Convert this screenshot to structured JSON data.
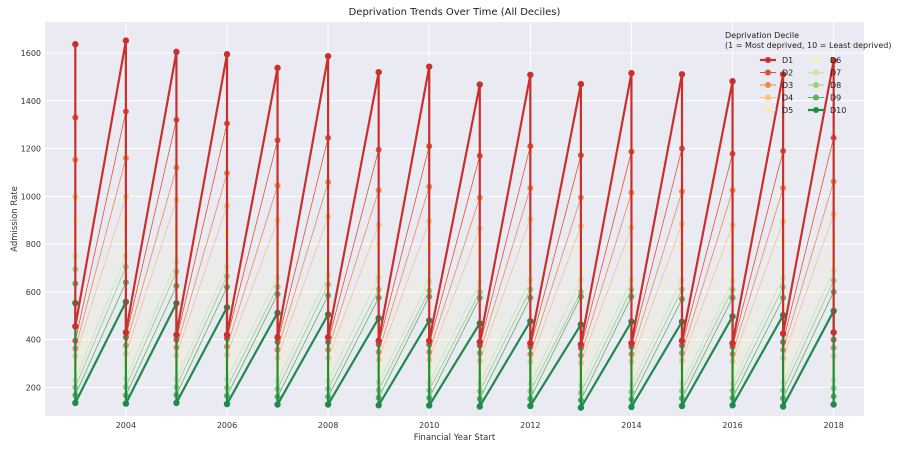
{
  "chart_data": {
    "type": "line",
    "title": "Deprivation Trends Over Time (All Deciles)",
    "xlabel": "Financial Year Start",
    "ylabel": "Admission Rate",
    "xlim": [
      2002.4,
      2018.6
    ],
    "ylim": [
      80,
      1730
    ],
    "xticks": [
      2004,
      2006,
      2008,
      2010,
      2012,
      2014,
      2016,
      2018
    ],
    "yticks": [
      200,
      400,
      600,
      800,
      1000,
      1200,
      1400,
      1600
    ],
    "grid": true,
    "legend": {
      "title_line1": "Deprivation Decile",
      "title_line2": "(1 = Most deprived, 10 = Least deprived)",
      "placement": "top-right"
    },
    "x": [
      2003,
      2004,
      2005,
      2006,
      2007,
      2008,
      2009,
      2010,
      2011,
      2012,
      2013,
      2014,
      2015,
      2016,
      2017,
      2018
    ],
    "series": [
      {
        "name": "D1",
        "color": "#c9302c",
        "bold": true,
        "peak": [
          1637,
          1652,
          1605,
          1595,
          1538,
          1587,
          1520,
          1543,
          1468,
          1509,
          1470,
          1516,
          1511,
          1482,
          1511,
          1568
        ],
        "low": [
          455,
          430,
          420,
          420,
          410,
          410,
          395,
          395,
          390,
          385,
          380,
          385,
          395,
          385,
          425,
          430
        ]
      },
      {
        "name": "D2",
        "color": "#dd5138",
        "bold": false,
        "peak": [
          1330,
          1355,
          1320,
          1305,
          1235,
          1245,
          1195,
          1210,
          1170,
          1210,
          1172,
          1187,
          1200,
          1178,
          1190,
          1245
        ],
        "low": [
          395,
          410,
          400,
          405,
          390,
          390,
          380,
          380,
          375,
          370,
          365,
          370,
          375,
          370,
          390,
          400
        ]
      },
      {
        "name": "D3",
        "color": "#ef8a4d",
        "bold": false,
        "peak": [
          1153,
          1160,
          1120,
          1097,
          1045,
          1060,
          1025,
          1040,
          995,
          1035,
          995,
          1015,
          1020,
          1025,
          1035,
          1062
        ]
      },
      {
        "name": "D4",
        "color": "#f8c27a",
        "bold": false,
        "peak": [
          998,
          998,
          985,
          960,
          900,
          915,
          880,
          895,
          865,
          905,
          875,
          870,
          885,
          880,
          895,
          925
        ]
      },
      {
        "name": "D5",
        "color": "#fcecaa",
        "bold": false,
        "peak": [
          900,
          905,
          870,
          850,
          800,
          815,
          800,
          795,
          785,
          805,
          785,
          790,
          800,
          790,
          810,
          820
        ]
      },
      {
        "name": "D6",
        "color": "#eef3b4",
        "bold": false,
        "peak": [
          820,
          810,
          780,
          760,
          720,
          735,
          700,
          700,
          690,
          710,
          690,
          700,
          700,
          700,
          720,
          735
        ]
      },
      {
        "name": "D7",
        "color": "#cce79a",
        "bold": false,
        "peak": [
          750,
          750,
          725,
          705,
          660,
          670,
          660,
          645,
          640,
          650,
          650,
          650,
          650,
          645,
          660,
          690
        ]
      },
      {
        "name": "D8",
        "color": "#98cf77",
        "bold": false,
        "peak": [
          695,
          705,
          685,
          665,
          620,
          630,
          610,
          605,
          600,
          610,
          600,
          610,
          610,
          610,
          620,
          648
        ]
      },
      {
        "name": "D9",
        "color": "#5cb05e",
        "bold": false,
        "peak": [
          635,
          640,
          625,
          620,
          590,
          585,
          575,
          580,
          575,
          575,
          580,
          580,
          570,
          575,
          575,
          600
        ]
      },
      {
        "name": "D10",
        "color": "#1f8a4c",
        "bold": true,
        "peak": [
          553,
          558,
          552,
          535,
          512,
          505,
          490,
          480,
          468,
          477,
          463,
          475,
          475,
          497,
          502,
          520
        ],
        "low": [
          135,
          132,
          135,
          130,
          128,
          128,
          125,
          124,
          120,
          122,
          115,
          118,
          122,
          125,
          120,
          128
        ]
      }
    ]
  }
}
